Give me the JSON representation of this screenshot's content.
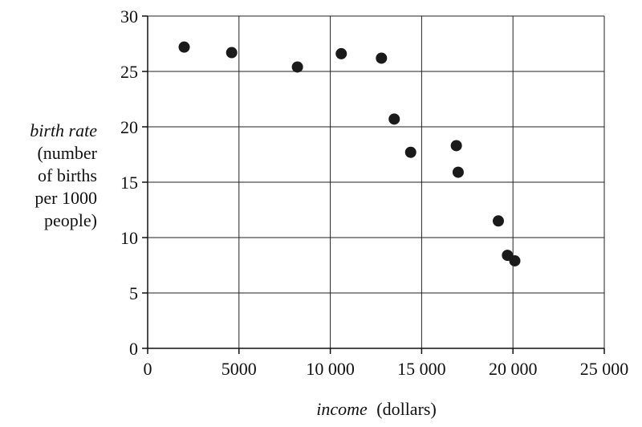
{
  "chart_data": {
    "type": "scatter",
    "title": "",
    "xlabel": {
      "italic": "income",
      "rest": "(dollars)"
    },
    "ylabel": {
      "italic": "birth rate",
      "lines": [
        "(number",
        "of births",
        "per 1000",
        "people)"
      ]
    },
    "xlim": [
      0,
      25000
    ],
    "ylim": [
      0,
      30
    ],
    "x_ticks": [
      0,
      5000,
      10000,
      15000,
      20000,
      25000
    ],
    "x_tick_labels": [
      "0",
      "5000",
      "10 000",
      "15 000",
      "20 000",
      "25 000"
    ],
    "y_ticks": [
      0,
      5,
      10,
      15,
      20,
      25,
      30
    ],
    "y_tick_labels": [
      "0",
      "5",
      "10",
      "15",
      "20",
      "25",
      "30"
    ],
    "grid": true,
    "points": [
      {
        "x": 2000,
        "y": 27.2
      },
      {
        "x": 4600,
        "y": 26.7
      },
      {
        "x": 8200,
        "y": 25.4
      },
      {
        "x": 10600,
        "y": 26.6
      },
      {
        "x": 12800,
        "y": 26.2
      },
      {
        "x": 13500,
        "y": 20.7
      },
      {
        "x": 14400,
        "y": 17.7
      },
      {
        "x": 16900,
        "y": 18.3
      },
      {
        "x": 17000,
        "y": 15.9
      },
      {
        "x": 19200,
        "y": 11.5
      },
      {
        "x": 19700,
        "y": 8.4
      },
      {
        "x": 20100,
        "y": 7.9
      }
    ],
    "point_color": "#1a1a1a"
  }
}
